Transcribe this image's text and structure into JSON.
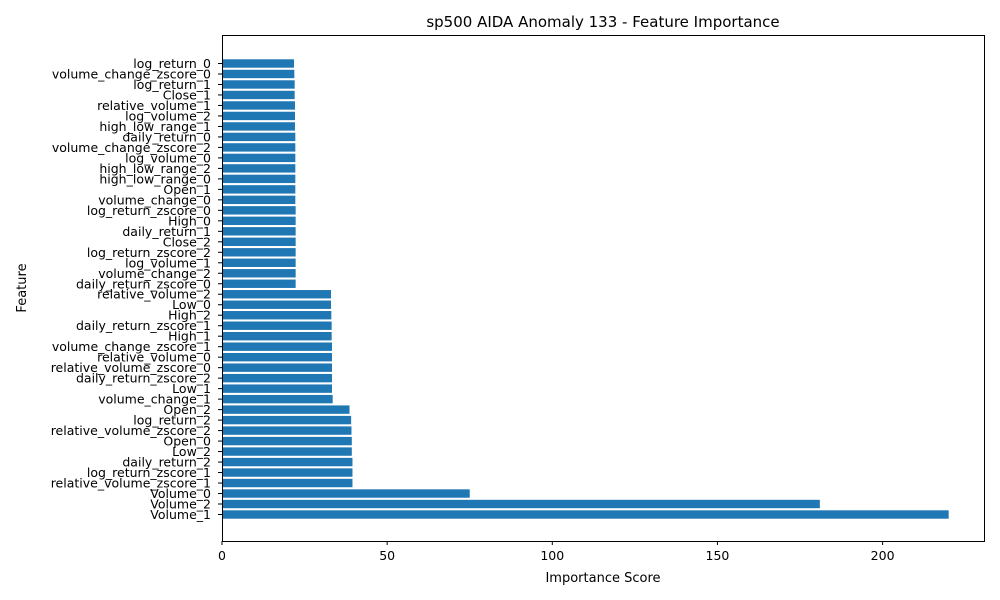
{
  "chart_data": {
    "type": "bar",
    "orientation": "horizontal",
    "title": "sp500 AIDA Anomaly 133 - Feature Importance",
    "xlabel": "Importance Score",
    "ylabel": "Feature",
    "xlim": [
      0,
      231
    ],
    "xticks": [
      0,
      50,
      100,
      150,
      200
    ],
    "grid": false,
    "legend": "none",
    "bar_color": "#1f77b4",
    "categories": [
      "Volume_1",
      "Volume_2",
      "Volume_0",
      "relative_volume_zscore_1",
      "log_return_zscore_1",
      "daily_return_2",
      "Low_2",
      "Open_0",
      "relative_volume_zscore_2",
      "log_return_2",
      "Open_2",
      "volume_change_1",
      "Low_1",
      "daily_return_zscore_2",
      "relative_volume_zscore_0",
      "relative_volume_0",
      "volume_change_zscore_1",
      "High_1",
      "daily_return_zscore_1",
      "High_2",
      "Low_0",
      "relative_volume_2",
      "daily_return_zscore_0",
      "volume_change_2",
      "log_volume_1",
      "log_return_zscore_2",
      "Close_2",
      "daily_return_1",
      "High_0",
      "log_return_zscore_0",
      "volume_change_0",
      "Open_1",
      "high_low_range_0",
      "high_low_range_2",
      "log_volume_0",
      "volume_change_zscore_2",
      "daily_return_0",
      "high_low_range_1",
      "log_volume_2",
      "relative_volume_1",
      "Close_1",
      "log_return_1",
      "volume_change_zscore_0",
      "log_return_0"
    ],
    "values": [
      220,
      181,
      75,
      39.5,
      39.5,
      39.5,
      39.3,
      39.3,
      39.2,
      39.1,
      38.6,
      33.5,
      33.3,
      33.3,
      33.3,
      33.3,
      33.3,
      33.2,
      33.2,
      33.1,
      33.0,
      33.0,
      22.3,
      22.3,
      22.3,
      22.3,
      22.3,
      22.3,
      22.3,
      22.3,
      22.2,
      22.2,
      22.2,
      22.2,
      22.2,
      22.2,
      22.2,
      22.1,
      22.1,
      22.1,
      22.0,
      22.0,
      21.9,
      21.8
    ]
  }
}
